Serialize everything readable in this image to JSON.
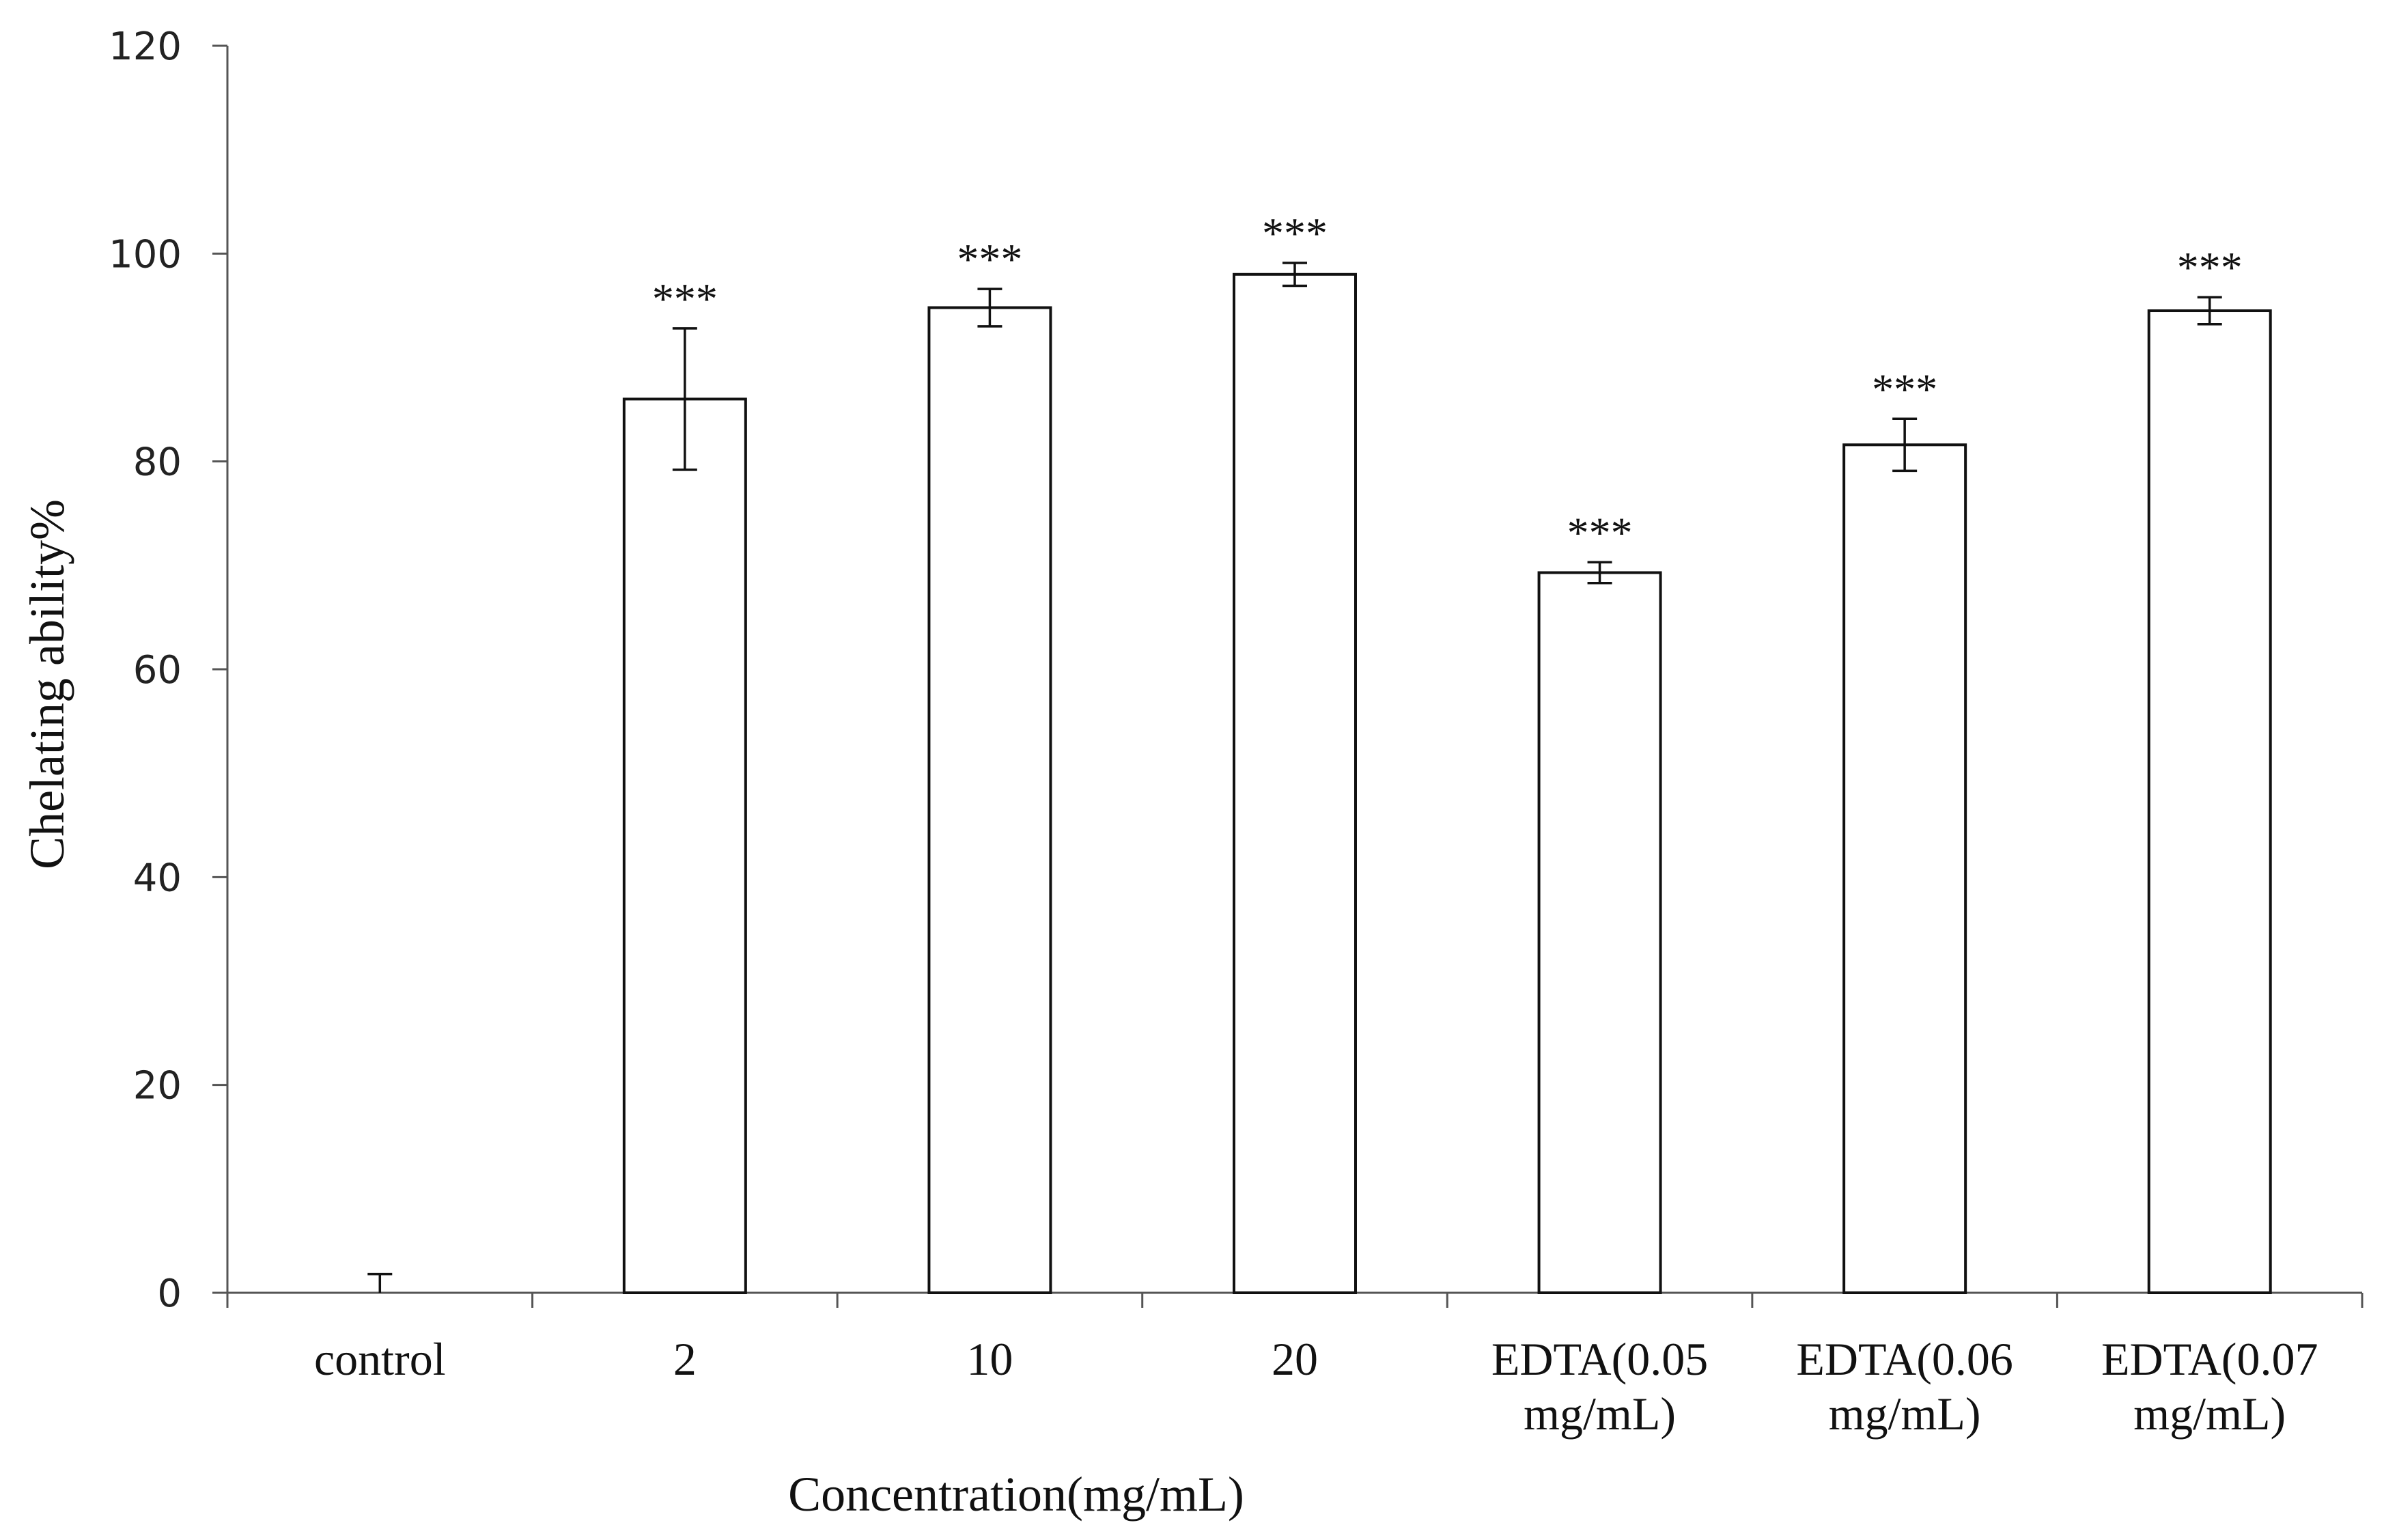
{
  "chart_data": {
    "type": "bar",
    "title": "",
    "xlabel": "Concentration(mg/mL)",
    "ylabel": "Chelating ability%",
    "ylim": [
      0,
      120
    ],
    "yticks": [
      0,
      20,
      40,
      60,
      80,
      100,
      120
    ],
    "grid": false,
    "legend": "none",
    "categories": [
      [
        "control"
      ],
      [
        "2"
      ],
      [
        "10"
      ],
      [
        "20"
      ],
      [
        "EDTA(0.05",
        "mg/mL)"
      ],
      [
        "EDTA(0.06",
        "mg/mL)"
      ],
      [
        "EDTA(0.07",
        "mg/mL)"
      ]
    ],
    "values": [
      0,
      86,
      94.8,
      98,
      69.3,
      81.6,
      94.5
    ],
    "errors": [
      1.8,
      6.8,
      1.8,
      1.1,
      1.0,
      2.5,
      1.3
    ],
    "annotations": [
      "",
      "***",
      "***",
      "***",
      "***",
      "***",
      "***"
    ],
    "colors": {
      "bar_fill": "#ffffff",
      "bar_stroke": "#111111",
      "axis": "#555555"
    }
  }
}
